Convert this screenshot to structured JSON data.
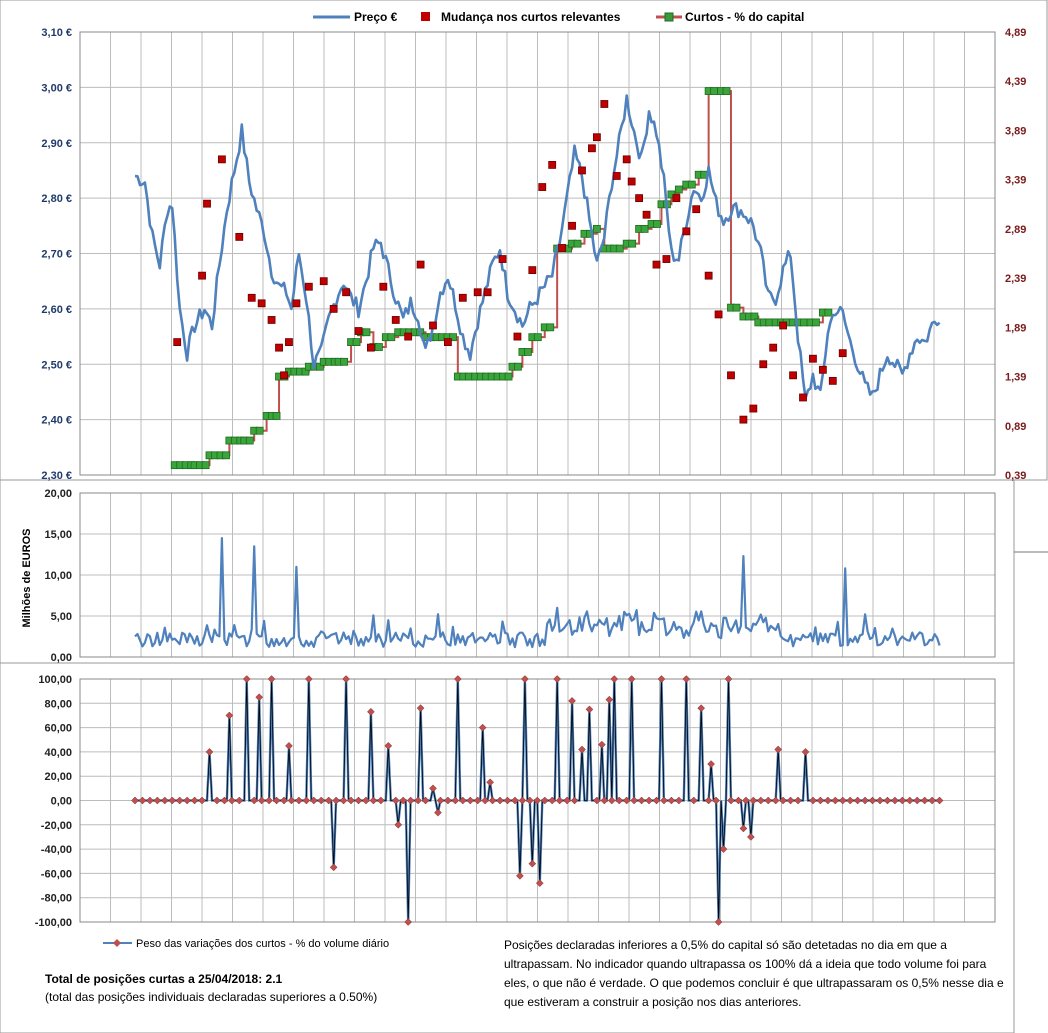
{
  "chart_data": [
    {
      "type": "line",
      "series": [
        {
          "name": "Preço €",
          "axis": "left",
          "color": "#4f81bd"
        },
        {
          "name": "Mudança nos curtos relevantes",
          "axis": "right",
          "marker": "square",
          "color": "#c00000"
        },
        {
          "name": "Curtos - % do capital",
          "axis": "right",
          "color": "#c0504d",
          "marker_color": "#3a9a3a"
        }
      ],
      "y_left_ticks": [
        "3,10 €",
        "3,00 €",
        "2,90 €",
        "2,80 €",
        "2,70 €",
        "2,60 €",
        "2,50 €",
        "2,40 €",
        "2,30 €"
      ],
      "y_left_range": [
        2.3,
        3.1
      ],
      "y_right_ticks": [
        "4,89",
        "4,39",
        "3,89",
        "3,39",
        "2,89",
        "2,39",
        "1,89",
        "1,39",
        "0,89",
        "0,39"
      ],
      "y_right_range": [
        0.39,
        4.89
      ],
      "price_keypoints": [
        [
          0,
          2.84
        ],
        [
          4,
          2.83
        ],
        [
          7,
          2.73
        ],
        [
          10,
          2.68
        ],
        [
          13,
          2.78
        ],
        [
          15,
          2.79
        ],
        [
          18,
          2.6
        ],
        [
          21,
          2.52
        ],
        [
          24,
          2.57
        ],
        [
          28,
          2.6
        ],
        [
          31,
          2.57
        ],
        [
          34,
          2.68
        ],
        [
          37,
          2.78
        ],
        [
          40,
          2.85
        ],
        [
          43,
          2.92
        ],
        [
          46,
          2.83
        ],
        [
          49,
          2.78
        ],
        [
          52,
          2.74
        ],
        [
          55,
          2.67
        ],
        [
          58,
          2.64
        ],
        [
          61,
          2.63
        ],
        [
          63,
          2.6
        ],
        [
          66,
          2.7
        ],
        [
          69,
          2.62
        ],
        [
          72,
          2.5
        ],
        [
          75,
          2.52
        ],
        [
          78,
          2.58
        ],
        [
          81,
          2.62
        ],
        [
          84,
          2.65
        ],
        [
          87,
          2.62
        ],
        [
          90,
          2.6
        ],
        [
          93,
          2.65
        ],
        [
          96,
          2.71
        ],
        [
          99,
          2.72
        ],
        [
          102,
          2.67
        ],
        [
          105,
          2.62
        ],
        [
          108,
          2.58
        ],
        [
          111,
          2.61
        ],
        [
          114,
          2.59
        ],
        [
          117,
          2.52
        ],
        [
          120,
          2.57
        ],
        [
          123,
          2.63
        ],
        [
          126,
          2.66
        ],
        [
          129,
          2.61
        ],
        [
          132,
          2.55
        ],
        [
          135,
          2.52
        ],
        [
          138,
          2.58
        ],
        [
          141,
          2.63
        ],
        [
          144,
          2.68
        ],
        [
          147,
          2.71
        ],
        [
          150,
          2.63
        ],
        [
          153,
          2.6
        ],
        [
          156,
          2.57
        ],
        [
          159,
          2.6
        ],
        [
          162,
          2.62
        ],
        [
          165,
          2.64
        ],
        [
          168,
          2.66
        ],
        [
          171,
          2.72
        ],
        [
          174,
          2.8
        ],
        [
          177,
          2.88
        ],
        [
          180,
          2.84
        ],
        [
          183,
          2.76
        ],
        [
          186,
          2.68
        ],
        [
          189,
          2.73
        ],
        [
          192,
          2.83
        ],
        [
          195,
          2.9
        ],
        [
          198,
          2.98
        ],
        [
          201,
          2.92
        ],
        [
          204,
          2.87
        ],
        [
          207,
          2.96
        ],
        [
          210,
          2.92
        ],
        [
          213,
          2.83
        ],
        [
          216,
          2.7
        ],
        [
          219,
          2.69
        ],
        [
          222,
          2.76
        ],
        [
          225,
          2.82
        ],
        [
          228,
          2.8
        ],
        [
          231,
          2.85
        ],
        [
          234,
          2.79
        ],
        [
          237,
          2.76
        ],
        [
          240,
          2.78
        ],
        [
          243,
          2.78
        ],
        [
          246,
          2.77
        ],
        [
          249,
          2.75
        ],
        [
          252,
          2.7
        ],
        [
          255,
          2.62
        ],
        [
          258,
          2.62
        ],
        [
          261,
          2.67
        ],
        [
          264,
          2.7
        ],
        [
          267,
          2.55
        ],
        [
          270,
          2.43
        ],
        [
          273,
          2.48
        ],
        [
          276,
          2.44
        ],
        [
          279,
          2.56
        ],
        [
          282,
          2.6
        ],
        [
          285,
          2.59
        ],
        [
          288,
          2.54
        ],
        [
          291,
          2.5
        ],
        [
          294,
          2.46
        ],
        [
          297,
          2.44
        ],
        [
          300,
          2.48
        ],
        [
          303,
          2.52
        ],
        [
          306,
          2.5
        ],
        [
          309,
          2.48
        ],
        [
          312,
          2.52
        ],
        [
          315,
          2.55
        ],
        [
          318,
          2.54
        ],
        [
          321,
          2.57
        ],
        [
          324,
          2.59
        ]
      ],
      "shorts_pct_keypoints": [
        [
          16,
          0.49
        ],
        [
          24,
          0.49
        ],
        [
          30,
          0.59
        ],
        [
          38,
          0.74
        ],
        [
          44,
          0.74
        ],
        [
          48,
          0.84
        ],
        [
          53,
          0.99
        ],
        [
          57,
          0.99
        ],
        [
          58,
          1.39
        ],
        [
          62,
          1.44
        ],
        [
          70,
          1.49
        ],
        [
          76,
          1.54
        ],
        [
          82,
          1.54
        ],
        [
          87,
          1.74
        ],
        [
          91,
          1.84
        ],
        [
          96,
          1.69
        ],
        [
          101,
          1.79
        ],
        [
          106,
          1.84
        ],
        [
          117,
          1.79
        ],
        [
          130,
          1.39
        ],
        [
          137,
          1.39
        ],
        [
          146,
          1.39
        ],
        [
          152,
          1.49
        ],
        [
          156,
          1.64
        ],
        [
          160,
          1.79
        ],
        [
          165,
          1.89
        ],
        [
          170,
          2.69
        ],
        [
          176,
          2.74
        ],
        [
          181,
          2.84
        ],
        [
          186,
          2.89
        ],
        [
          189,
          2.69
        ],
        [
          193,
          2.69
        ],
        [
          198,
          2.74
        ],
        [
          203,
          2.89
        ],
        [
          208,
          2.94
        ],
        [
          212,
          3.14
        ],
        [
          216,
          3.24
        ],
        [
          219,
          3.29
        ],
        [
          222,
          3.34
        ],
        [
          227,
          3.44
        ],
        [
          231,
          4.29
        ],
        [
          236,
          4.29
        ],
        [
          240,
          2.09
        ],
        [
          245,
          2.0
        ],
        [
          251,
          1.94
        ],
        [
          258,
          1.94
        ],
        [
          265,
          1.94
        ],
        [
          272,
          1.94
        ],
        [
          277,
          2.04
        ]
      ],
      "change_points": [
        [
          17,
          2.54
        ],
        [
          27,
          2.66
        ],
        [
          29,
          2.79
        ],
        [
          35,
          2.87
        ],
        [
          42,
          2.73
        ],
        [
          47,
          2.62
        ],
        [
          51,
          2.61
        ],
        [
          55,
          2.58
        ],
        [
          58,
          2.53
        ],
        [
          60,
          2.48
        ],
        [
          62,
          2.54
        ],
        [
          65,
          2.61
        ],
        [
          70,
          2.64
        ],
        [
          76,
          2.65
        ],
        [
          80,
          2.6
        ],
        [
          85,
          2.63
        ],
        [
          90,
          2.56
        ],
        [
          95,
          2.53
        ],
        [
          100,
          2.64
        ],
        [
          105,
          2.58
        ],
        [
          110,
          2.55
        ],
        [
          115,
          2.68
        ],
        [
          120,
          2.57
        ],
        [
          126,
          2.54
        ],
        [
          132,
          2.62
        ],
        [
          138,
          2.63
        ],
        [
          142,
          2.63
        ],
        [
          148,
          2.69
        ],
        [
          154,
          2.55
        ],
        [
          160,
          2.67
        ],
        [
          164,
          2.82
        ],
        [
          168,
          2.86
        ],
        [
          172,
          2.71
        ],
        [
          176,
          2.75
        ],
        [
          180,
          2.85
        ],
        [
          184,
          2.89
        ],
        [
          186,
          2.91
        ],
        [
          189,
          2.97
        ],
        [
          194,
          2.84
        ],
        [
          198,
          2.87
        ],
        [
          200,
          2.83
        ],
        [
          203,
          2.8
        ],
        [
          206,
          2.77
        ],
        [
          210,
          2.68
        ],
        [
          214,
          2.69
        ],
        [
          218,
          2.8
        ],
        [
          222,
          2.74
        ],
        [
          226,
          2.78
        ],
        [
          231,
          2.66
        ],
        [
          235,
          2.59
        ],
        [
          240,
          2.48
        ],
        [
          245,
          2.4
        ],
        [
          249,
          2.42
        ],
        [
          253,
          2.5
        ],
        [
          257,
          2.53
        ],
        [
          261,
          2.57
        ],
        [
          265,
          2.48
        ],
        [
          269,
          2.44
        ],
        [
          273,
          2.51
        ],
        [
          277,
          2.49
        ],
        [
          281,
          2.47
        ],
        [
          285,
          2.52
        ]
      ],
      "x_count": 330
    },
    {
      "type": "line",
      "ylabel": "Milhões de EUROS",
      "y_ticks": [
        "20,00",
        "15,00",
        "10,00",
        "5,00",
        "0,00"
      ],
      "y_range": [
        0,
        20
      ],
      "series": [
        {
          "color": "#4f81bd"
        }
      ],
      "spikes": [
        [
          35,
          14.5
        ],
        [
          48,
          13.5
        ],
        [
          65,
          11
        ],
        [
          170,
          6
        ],
        [
          195,
          5
        ],
        [
          245,
          12.3
        ],
        [
          286,
          10.8
        ],
        [
          294,
          5.2
        ]
      ]
    },
    {
      "type": "line",
      "y_ticks": [
        "100,00",
        "80,00",
        "60,00",
        "40,00",
        "20,00",
        "0,00",
        "-20,00",
        "-40,00",
        "-60,00",
        "-80,00",
        "-100,00"
      ],
      "y_range": [
        -100,
        100
      ],
      "series": [
        {
          "name": "Peso das variações dos curtos - % do volume diário",
          "color": "#4f81bd",
          "marker_color": "#c0504d"
        }
      ],
      "points": [
        [
          30,
          40
        ],
        [
          38,
          70
        ],
        [
          45,
          100
        ],
        [
          50,
          85
        ],
        [
          55,
          100
        ],
        [
          62,
          45
        ],
        [
          70,
          100
        ],
        [
          80,
          -55
        ],
        [
          85,
          100
        ],
        [
          95,
          73
        ],
        [
          102,
          45
        ],
        [
          106,
          -20
        ],
        [
          110,
          -100
        ],
        [
          115,
          76
        ],
        [
          120,
          10
        ],
        [
          122,
          -10
        ],
        [
          130,
          100
        ],
        [
          140,
          60
        ],
        [
          143,
          15
        ],
        [
          155,
          -62
        ],
        [
          157,
          100
        ],
        [
          160,
          -52
        ],
        [
          163,
          -68
        ],
        [
          170,
          100
        ],
        [
          176,
          82
        ],
        [
          180,
          42
        ],
        [
          183,
          75
        ],
        [
          188,
          46
        ],
        [
          191,
          83
        ],
        [
          193,
          100
        ],
        [
          200,
          100
        ],
        [
          212,
          100
        ],
        [
          222,
          100
        ],
        [
          228,
          76
        ],
        [
          232,
          30
        ],
        [
          235,
          -100
        ],
        [
          237,
          -40
        ],
        [
          239,
          100
        ],
        [
          245,
          -23
        ],
        [
          248,
          -30
        ],
        [
          259,
          42
        ],
        [
          270,
          40
        ]
      ]
    }
  ],
  "legend": {
    "price": "Preço €",
    "change": "Mudança nos curtos relevantes",
    "shorts": "Curtos - % do capital",
    "weight": "Peso das variações dos curtos - % do volume diário"
  },
  "notes": {
    "total_label": "Total de posições curtas a 25/04/2018:  2.1",
    "total_sub": "(total das posições individuais declaradas superiores a 0.50%)",
    "text": "Posições declaradas inferiores a 0,5% do capital só são detetadas no dia em que a ultrapassam.  No indicador quando ultrapassa os 100% dá a ideia que todo volume foi para eles, o que não é verdade.  O que podemos concluir é que ultrapassaram os 0,5% nesse dia e que estiveram a construir a posição nos dias anteriores."
  }
}
